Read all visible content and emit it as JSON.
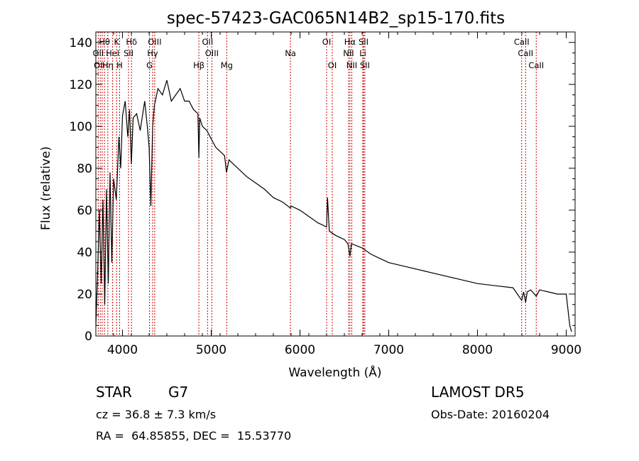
{
  "chart_data": {
    "type": "line",
    "title": "spec-57423-GAC065N14B2_sp15-170.fits",
    "xlabel": "Wavelength (Å)",
    "ylabel": "Flux (relative)",
    "xlim": [
      3700,
      9100
    ],
    "ylim": [
      0,
      145
    ],
    "xticks": [
      4000,
      5000,
      6000,
      7000,
      8000,
      9000
    ],
    "yticks": [
      0,
      20,
      40,
      60,
      80,
      100,
      120,
      140
    ],
    "grid": false,
    "series": [
      {
        "color": "#000000",
        "points": [
          [
            3700,
            5
          ],
          [
            3720,
            30
          ],
          [
            3740,
            60
          ],
          [
            3760,
            25
          ],
          [
            3780,
            65
          ],
          [
            3800,
            15
          ],
          [
            3820,
            70
          ],
          [
            3840,
            25
          ],
          [
            3860,
            78
          ],
          [
            3880,
            35
          ],
          [
            3900,
            75
          ],
          [
            3930,
            65
          ],
          [
            3960,
            95
          ],
          [
            3980,
            80
          ],
          [
            4000,
            105
          ],
          [
            4030,
            112
          ],
          [
            4060,
            95
          ],
          [
            4080,
            108
          ],
          [
            4100,
            82
          ],
          [
            4120,
            104
          ],
          [
            4160,
            106
          ],
          [
            4200,
            98
          ],
          [
            4250,
            112
          ],
          [
            4280,
            100
          ],
          [
            4300,
            90
          ],
          [
            4320,
            62
          ],
          [
            4340,
            100
          ],
          [
            4360,
            110
          ],
          [
            4400,
            118
          ],
          [
            4450,
            115
          ],
          [
            4500,
            122
          ],
          [
            4550,
            112
          ],
          [
            4600,
            115
          ],
          [
            4650,
            118
          ],
          [
            4700,
            112
          ],
          [
            4750,
            112
          ],
          [
            4800,
            108
          ],
          [
            4850,
            106
          ],
          [
            4861,
            85
          ],
          [
            4870,
            104
          ],
          [
            4900,
            100
          ],
          [
            4950,
            98
          ],
          [
            5000,
            94
          ],
          [
            5050,
            90
          ],
          [
            5100,
            88
          ],
          [
            5150,
            86
          ],
          [
            5172,
            78
          ],
          [
            5200,
            84
          ],
          [
            5300,
            80
          ],
          [
            5400,
            76
          ],
          [
            5500,
            73
          ],
          [
            5600,
            70
          ],
          [
            5700,
            66
          ],
          [
            5800,
            64
          ],
          [
            5893,
            61
          ],
          [
            5900,
            62
          ],
          [
            6000,
            60
          ],
          [
            6100,
            57
          ],
          [
            6200,
            54
          ],
          [
            6300,
            52
          ],
          [
            6310,
            66
          ],
          [
            6330,
            50
          ],
          [
            6400,
            48
          ],
          [
            6500,
            46
          ],
          [
            6540,
            44
          ],
          [
            6563,
            38
          ],
          [
            6580,
            44
          ],
          [
            6700,
            42
          ],
          [
            6800,
            39
          ],
          [
            6900,
            37
          ],
          [
            7000,
            35
          ],
          [
            7200,
            33
          ],
          [
            7400,
            31
          ],
          [
            7600,
            29
          ],
          [
            7800,
            27
          ],
          [
            8000,
            25
          ],
          [
            8200,
            24
          ],
          [
            8400,
            23
          ],
          [
            8498,
            17
          ],
          [
            8520,
            21
          ],
          [
            8542,
            16
          ],
          [
            8560,
            21
          ],
          [
            8600,
            22
          ],
          [
            8662,
            19
          ],
          [
            8700,
            22
          ],
          [
            8800,
            21
          ],
          [
            8900,
            20
          ],
          [
            9000,
            20
          ],
          [
            9040,
            5
          ],
          [
            9060,
            2
          ]
        ]
      }
    ],
    "annotations": [
      {
        "text": "Hθ",
        "x": 3797,
        "row": 1
      },
      {
        "text": "K",
        "x": 3934,
        "row": 1
      },
      {
        "text": "Hδ",
        "x": 4102,
        "row": 1
      },
      {
        "text": "OIII",
        "x": 4363,
        "row": 1
      },
      {
        "text": "OII",
        "x": 4959,
        "row": 1
      },
      {
        "text": "OI",
        "x": 6300,
        "row": 1
      },
      {
        "text": "Hα",
        "x": 6563,
        "row": 1
      },
      {
        "text": "SII",
        "x": 6716,
        "row": 1
      },
      {
        "text": "CaII",
        "x": 8498,
        "row": 1
      },
      {
        "text": "OII",
        "x": 3727,
        "row": 2
      },
      {
        "text": "HeI",
        "x": 3889,
        "row": 2
      },
      {
        "text": "SII",
        "x": 4068,
        "row": 2
      },
      {
        "text": "Hγ",
        "x": 4340,
        "row": 2
      },
      {
        "text": "OIII",
        "x": 5007,
        "row": 2
      },
      {
        "text": "Na",
        "x": 5893,
        "row": 2
      },
      {
        "text": "NII",
        "x": 6548,
        "row": 2
      },
      {
        "text": "Li",
        "x": 6708,
        "row": 2
      },
      {
        "text": "CaII",
        "x": 8542,
        "row": 2
      },
      {
        "text": "OI",
        "x": 3727,
        "row": 3
      },
      {
        "text": "Hη",
        "x": 3835,
        "row": 3
      },
      {
        "text": "H",
        "x": 3968,
        "row": 3
      },
      {
        "text": "G",
        "x": 4305,
        "row": 3
      },
      {
        "text": "Hβ",
        "x": 4861,
        "row": 3
      },
      {
        "text": "Mg",
        "x": 5175,
        "row": 3
      },
      {
        "text": "OI",
        "x": 6364,
        "row": 3
      },
      {
        "text": "NII",
        "x": 6584,
        "row": 3
      },
      {
        "text": "SII",
        "x": 6731,
        "row": 3
      },
      {
        "text": "CaII",
        "x": 8662,
        "row": 3
      }
    ],
    "line_markers": [
      3727,
      3750,
      3771,
      3797,
      3835,
      3889,
      3934,
      3968,
      4068,
      4102,
      4305,
      4340,
      4363,
      4861,
      4959,
      5007,
      5175,
      5893,
      6300,
      6364,
      6548,
      6563,
      6584,
      6708,
      6716,
      6731,
      8498,
      8542,
      8662
    ],
    "marker_color": "#cc0000"
  },
  "info": {
    "object_type": "STAR",
    "subclass": "G7",
    "survey": "LAMOST DR5",
    "cz": "cz = 36.8 ± 7.3 km/s",
    "obs_date": "Obs-Date: 20160204",
    "coords": "RA =  64.85855, DEC =  15.53770"
  }
}
